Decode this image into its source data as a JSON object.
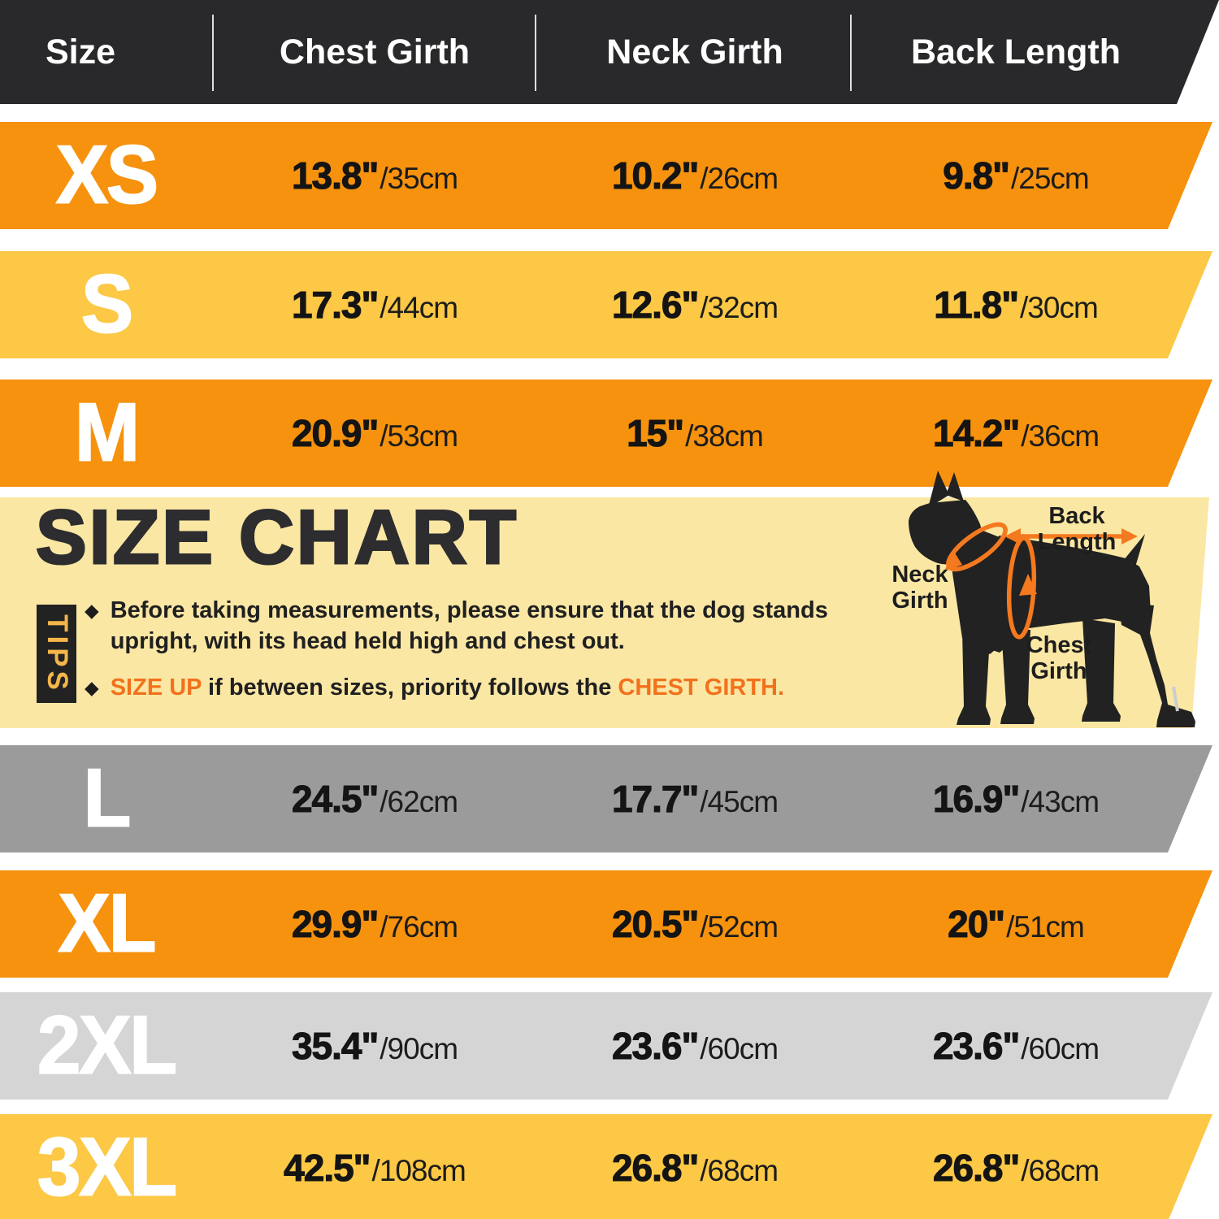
{
  "header": {
    "columns": [
      "Size",
      "Chest Girth",
      "Neck Girth",
      "Back Length"
    ]
  },
  "rows": [
    {
      "size": "XS",
      "theme": "orange",
      "chest_in": "13.8\"",
      "chest_cm": "/35cm",
      "neck_in": "10.2\"",
      "neck_cm": "/26cm",
      "back_in": "9.8\"",
      "back_cm": "/25cm"
    },
    {
      "size": "S",
      "theme": "yellow",
      "chest_in": "17.3\"",
      "chest_cm": "/44cm",
      "neck_in": "12.6\"",
      "neck_cm": "/32cm",
      "back_in": "11.8\"",
      "back_cm": "/30cm"
    },
    {
      "size": "M",
      "theme": "orange",
      "chest_in": "20.9\"",
      "chest_cm": "/53cm",
      "neck_in": "15\"",
      "neck_cm": "/38cm",
      "back_in": "14.2\"",
      "back_cm": "/36cm"
    },
    {
      "size": "L",
      "theme": "gray",
      "chest_in": "24.5\"",
      "chest_cm": "/62cm",
      "neck_in": "17.7\"",
      "neck_cm": "/45cm",
      "back_in": "16.9\"",
      "back_cm": "/43cm"
    },
    {
      "size": "XL",
      "theme": "orange",
      "chest_in": "29.9\"",
      "chest_cm": "/76cm",
      "neck_in": "20.5\"",
      "neck_cm": "/52cm",
      "back_in": "20\"",
      "back_cm": "/51cm"
    },
    {
      "size": "2XL",
      "theme": "lightgray",
      "chest_in": "35.4\"",
      "chest_cm": "/90cm",
      "neck_in": "23.6\"",
      "neck_cm": "/60cm",
      "back_in": "23.6\"",
      "back_cm": "/60cm"
    },
    {
      "size": "3XL",
      "theme": "yellow",
      "chest_in": "42.5\"",
      "chest_cm": "/108cm",
      "neck_in": "26.8\"",
      "neck_cm": "/68cm",
      "back_in": "26.8\"",
      "back_cm": "/68cm"
    }
  ],
  "info": {
    "title": "SIZE CHART",
    "tips_label": "TIPS",
    "bullet": "◆",
    "tip1": "Before taking measurements, please ensure that the dog stands upright, with its head held high and chest out.",
    "tip2_highlight1": "SIZE UP",
    "tip2_text": " if between sizes, priority follows the ",
    "tip2_highlight2": "CHEST GIRTH."
  },
  "dog_labels": {
    "back_length": "Back Length",
    "neck_girth_line1": "Neck",
    "neck_girth_line2": "Girth",
    "chest_girth_line1": "Chest",
    "chest_girth_line2": "Girth"
  },
  "colors": {
    "header_bg": "#29292b",
    "orange_row": "#f6920e",
    "yellow_row": "#fcc845",
    "gray_row": "#9b9b9b",
    "light_gray_row": "#d5d5d5",
    "cream_bg": "#fbe7a4",
    "accent_orange": "#f2711c",
    "arrow_orange": "#f4791f",
    "dog_black": "#222222"
  }
}
